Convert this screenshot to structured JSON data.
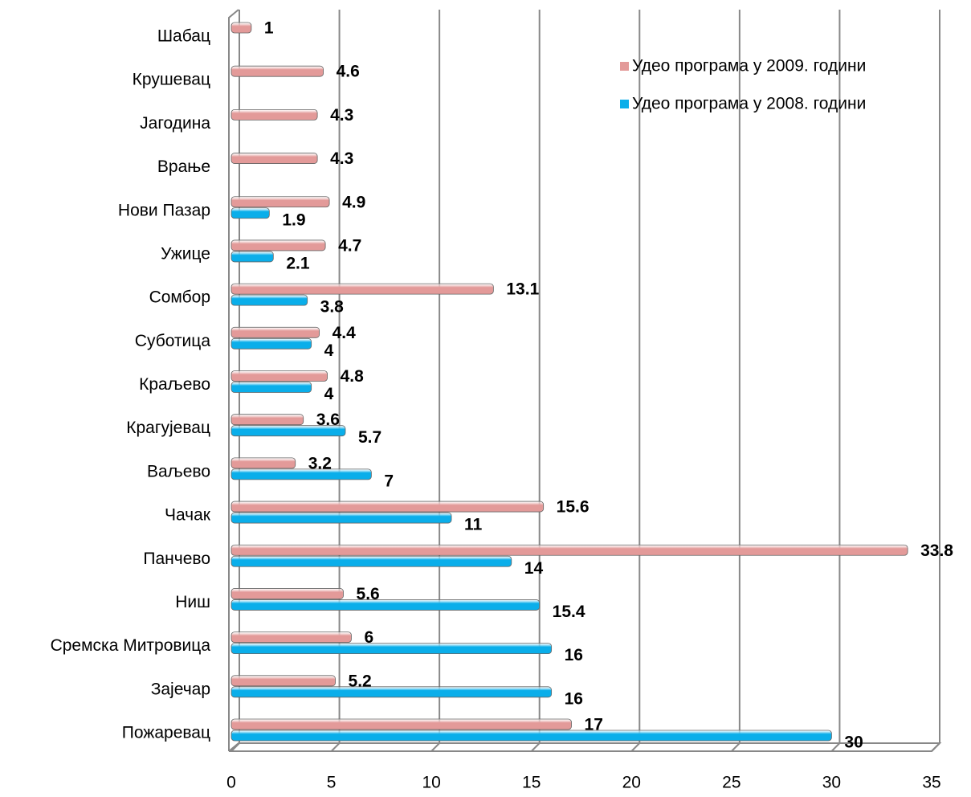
{
  "chart_data": {
    "type": "hbar",
    "categories": [
      "Шабац",
      "Крушевац",
      "Јагодина",
      "Врање",
      "Нови Пазар",
      "Ужице",
      "Сомбор",
      "Суботица",
      "Краљево",
      "Крагујевац",
      "Ваљево",
      "Чачак",
      "Панчево",
      "Ниш",
      "Сремска Митровица",
      "Зајечар",
      "Пожаревац"
    ],
    "series": [
      {
        "name": "Удео програма у 2009. години",
        "color": "#e39a99",
        "values": [
          1,
          4.6,
          4.3,
          4.3,
          4.9,
          4.7,
          13.1,
          4.4,
          4.8,
          3.6,
          3.2,
          15.6,
          33.8,
          5.6,
          6,
          5.2,
          17
        ]
      },
      {
        "name": "Удео програма у 2008. години",
        "color": "#0aaeea",
        "values": [
          null,
          null,
          null,
          null,
          1.9,
          2.1,
          3.8,
          4,
          4,
          5.7,
          7,
          11,
          14,
          15.4,
          16,
          16,
          30
        ]
      }
    ],
    "xlim": [
      0,
      35
    ],
    "xticks": [
      0,
      5,
      10,
      15,
      20,
      25,
      30,
      35
    ],
    "grid": true,
    "legend": "upper right"
  }
}
